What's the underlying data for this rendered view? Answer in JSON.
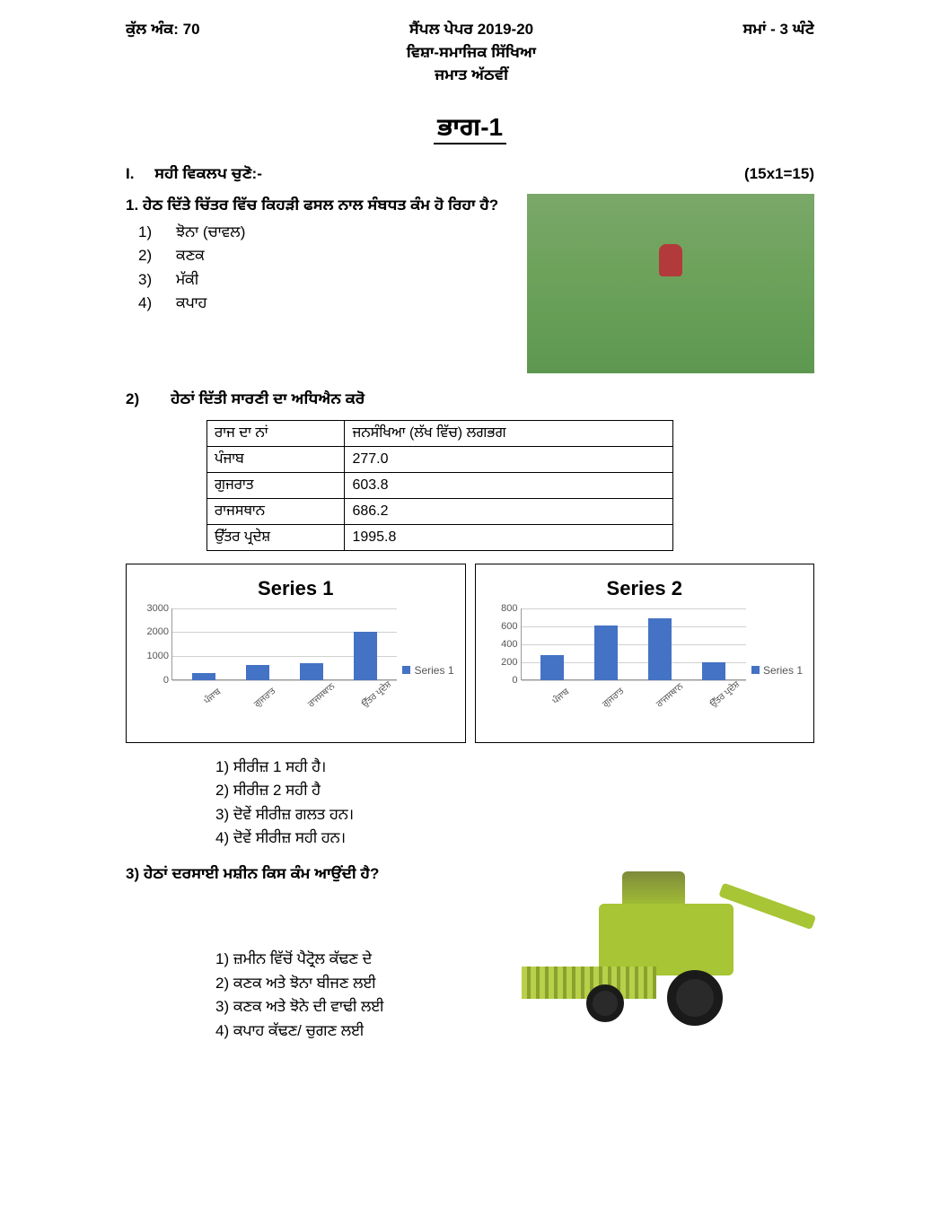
{
  "header": {
    "marks": "ਕੁੱਲ ਅੰਕ: 70",
    "title1": "ਸੈਂਪਲ ਪੇਪਰ 2019-20",
    "title2": "ਵਿਸ਼ਾ-ਸਮਾਜਿਕ ਸਿੱਖਿਆ",
    "title3": "ਜਮਾਤ  ਅੱਠਵੀਂ",
    "time": "ਸਮਾਂ - 3 ਘੰਟੇ"
  },
  "part_title": "ਭਾਗ-1",
  "section": {
    "num": "I.",
    "label": "ਸਹੀ ਵਿਕਲਪ ਚੁਣੋ:-",
    "marks": "(15x1=15)"
  },
  "q1": {
    "num": "1.",
    "text": "ਹੇਠ ਦਿੱਤੇ ਚਿੱਤਰ ਵਿੱਚ ਕਿਹੜੀ ਫਸਲ ਨਾਲ ਸੰਬਧਤ ਕੰਮ ਹੋ ਰਿਹਾ ਹੈ?",
    "opts": [
      {
        "n": "1)",
        "t": "ਝੋਨਾ (ਚਾਵਲ)"
      },
      {
        "n": "2)",
        "t": "ਕਣਕ"
      },
      {
        "n": "3)",
        "t": "ਮੱਕੀ"
      },
      {
        "n": "4)",
        "t": "ਕਪਾਹ"
      }
    ]
  },
  "q2": {
    "num": "2)",
    "text": "ਹੇਠਾਂ ਦਿੱਤੀ ਸਾਰਣੀ ਦਾ ਅਧਿਐਨ ਕਰੋ",
    "table": {
      "head": [
        "ਰਾਜ ਦਾ ਨਾਂ",
        "ਜਨਸੰਖਿਆ (ਲੱਖ ਵਿੱਚ) ਲਗਭਗ"
      ],
      "rows": [
        [
          "ਪੰਜਾਬ",
          "277.0"
        ],
        [
          "ਗੁਜਰਾਤ",
          "603.8"
        ],
        [
          "ਰਾਜਸਥਾਨ",
          "686.2"
        ],
        [
          "ਉੱਤਰ ਪ੍ਰਦੇਸ਼",
          "1995.8"
        ]
      ]
    },
    "chart1": {
      "title": "Series 1",
      "type": "bar",
      "categories": [
        "ਪੰਜਾਬ",
        "ਗੁਜਰਾਤ",
        "ਰਾਜਸਥਾਨ",
        "ਉੱਤਰ ਪ੍ਰਦੇਸ਼"
      ],
      "values": [
        277,
        603.8,
        686.2,
        1995.8
      ],
      "ylim": [
        0,
        3000
      ],
      "yticks": [
        0,
        1000,
        2000,
        3000
      ],
      "bar_color": "#4472c4",
      "grid_color": "#d0d0d0",
      "legend_label": "Series 1"
    },
    "chart2": {
      "title": "Series 2",
      "type": "bar",
      "categories": [
        "ਪੰਜਾਬ",
        "ਗੁਜਰਾਤ",
        "ਰਾਜਸਥਾਨ",
        "ਉੱਤਰ ਪ੍ਰਦੇਸ਼"
      ],
      "values": [
        277,
        603.8,
        686.2,
        200
      ],
      "ylim": [
        0,
        800
      ],
      "yticks": [
        0,
        200,
        400,
        600,
        800
      ],
      "bar_color": "#4472c4",
      "grid_color": "#d0d0d0",
      "legend_label": "Series 1"
    },
    "opts": [
      {
        "n": "1)",
        "t": "ਸੀਰੀਜ਼ 1 ਸਹੀ ਹੈ।"
      },
      {
        "n": "2)",
        "t": "ਸੀਰੀਜ਼ 2 ਸਹੀ ਹੈ"
      },
      {
        "n": "3)",
        "t": "ਦੋਵੇਂ ਸੀਰੀਜ਼ ਗਲਤ ਹਨ।"
      },
      {
        "n": "4)",
        "t": "ਦੋਵੇਂ ਸੀਰੀਜ਼ ਸਹੀ ਹਨ।"
      }
    ]
  },
  "q3": {
    "num": "3)",
    "text": "ਹੇਠਾਂ ਦਰਸਾਈ ਮਸ਼ੀਨ ਕਿਸ ਕੰਮ ਆਉਂਦੀ ਹੈ?",
    "opts": [
      {
        "n": "1)",
        "t": "ਜ਼ਮੀਨ ਵਿੱਚੋਂ ਪੈਟ੍ਰੋਲ ਕੱਢਣ ਦੇ"
      },
      {
        "n": "2)",
        "t": "ਕਣਕ ਅਤੇ ਝੋਨਾ ਬੀਜਣ ਲਈ"
      },
      {
        "n": "3)",
        "t": "ਕਣਕ ਅਤੇ ਝੋਨੇ ਦੀ ਵਾਢੀ ਲਈ"
      },
      {
        "n": "4)",
        "t": "ਕਪਾਹ ਕੱਢਣ/ ਚੁਗਣ ਲਈ"
      }
    ]
  }
}
